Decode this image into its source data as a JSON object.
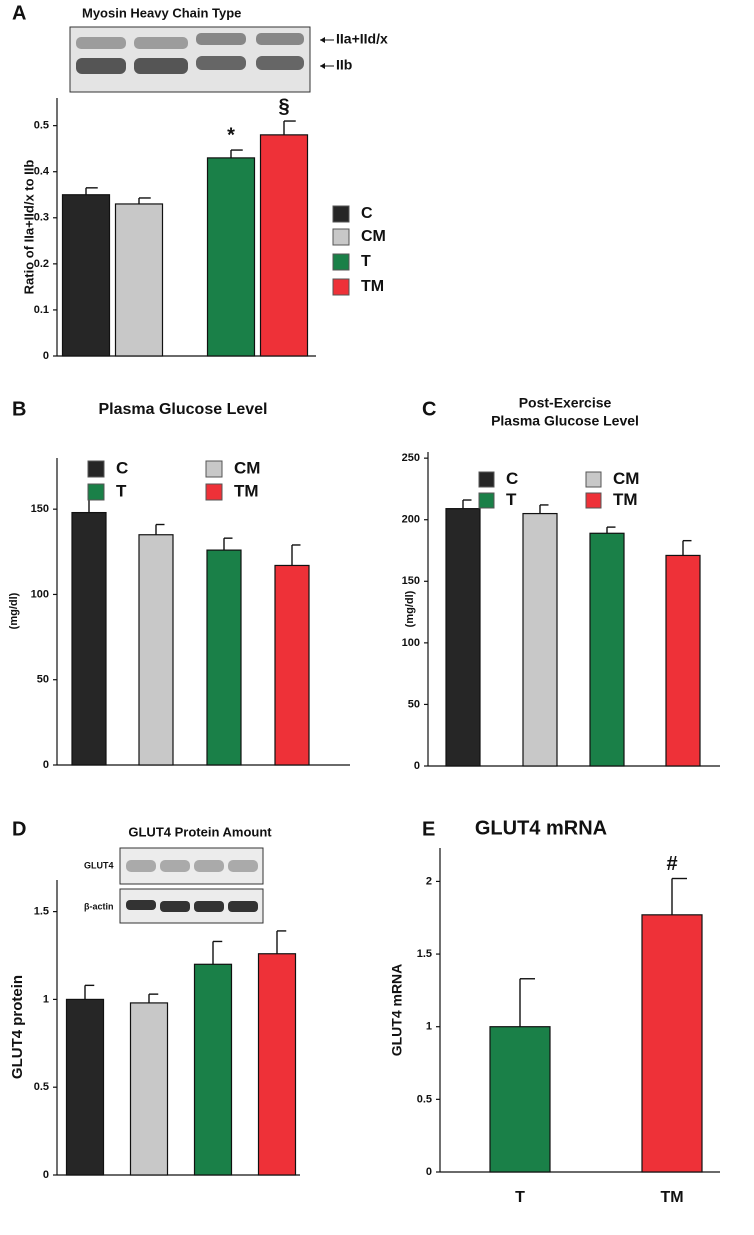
{
  "chart_data": [
    {
      "type": "bar",
      "panel_label": "A",
      "title": "Myosin Heavy Chain Type",
      "blot": {
        "bands": [
          "IIa+IId/x",
          "IIb"
        ]
      },
      "ylabel": "Ratio of IIa+IId/x to IIb",
      "ylim": [
        0,
        0.56
      ],
      "yticks": [
        0,
        0.1,
        0.2,
        0.3,
        0.4,
        0.5
      ],
      "series": [
        {
          "name": "C",
          "color": "#262626",
          "values": [
            0.35
          ],
          "errors": [
            0.015
          ]
        },
        {
          "name": "CM",
          "color": "#c8c8c8",
          "values": [
            0.33
          ],
          "errors": [
            0.013
          ]
        },
        {
          "name": "T",
          "color": "#1a8048",
          "values": [
            0.43
          ],
          "errors": [
            0.017
          ],
          "annotation": "*"
        },
        {
          "name": "TM",
          "color": "#ee3138",
          "values": [
            0.48
          ],
          "errors": [
            0.03
          ],
          "annotation": "§"
        }
      ]
    },
    {
      "type": "bar",
      "panel_label": "B",
      "title": [
        "Plasma Glucose Level"
      ],
      "ylabel": "(mg/dl)",
      "ylim": [
        0,
        180
      ],
      "yticks": [
        0,
        50,
        100,
        150
      ],
      "series": [
        {
          "name": "C",
          "color": "#262626",
          "values": [
            148
          ],
          "errors": [
            12
          ]
        },
        {
          "name": "CM",
          "color": "#c8c8c8",
          "values": [
            135
          ],
          "errors": [
            6
          ]
        },
        {
          "name": "T",
          "color": "#1a8048",
          "values": [
            126
          ],
          "errors": [
            7
          ]
        },
        {
          "name": "TM",
          "color": "#ee3138",
          "values": [
            117
          ],
          "errors": [
            12
          ]
        }
      ]
    },
    {
      "type": "bar",
      "panel_label": "C",
      "title": [
        "Post-Exercise",
        "Plasma Glucose Level"
      ],
      "ylabel": "(mg/dl)",
      "ylim": [
        0,
        255
      ],
      "yticks": [
        0,
        50,
        100,
        150,
        200,
        250
      ],
      "series": [
        {
          "name": "C",
          "color": "#262626",
          "values": [
            209
          ],
          "errors": [
            7
          ]
        },
        {
          "name": "CM",
          "color": "#c8c8c8",
          "values": [
            205
          ],
          "errors": [
            7
          ]
        },
        {
          "name": "T",
          "color": "#1a8048",
          "values": [
            189
          ],
          "errors": [
            5
          ]
        },
        {
          "name": "TM",
          "color": "#ee3138",
          "values": [
            171
          ],
          "errors": [
            12
          ]
        }
      ]
    },
    {
      "type": "bar",
      "panel_label": "D",
      "title": "GLUT4 Protein Amount",
      "blot": {
        "bands": [
          "GLUT4",
          "β-actin"
        ]
      },
      "ylabel": "GLUT4 protein",
      "ylim": [
        0,
        1.68
      ],
      "yticks": [
        0,
        0.5,
        1,
        1.5
      ],
      "series": [
        {
          "color": "#262626",
          "values": [
            1.0
          ],
          "errors": [
            0.08
          ]
        },
        {
          "color": "#c8c8c8",
          "values": [
            0.98
          ],
          "errors": [
            0.05
          ]
        },
        {
          "color": "#1a8048",
          "values": [
            1.2
          ],
          "errors": [
            0.13
          ]
        },
        {
          "color": "#ee3138",
          "values": [
            1.26
          ],
          "errors": [
            0.13
          ]
        }
      ]
    },
    {
      "type": "bar",
      "panel_label": "E",
      "title": "GLUT4 mRNA",
      "ylabel": "GLUT4 mRNA",
      "ylim": [
        0,
        2.23
      ],
      "yticks": [
        0,
        0.5,
        1,
        1.5,
        2
      ],
      "categories": [
        "T",
        "TM"
      ],
      "values": [
        1.0,
        1.77
      ],
      "errors": [
        0.33,
        0.25
      ],
      "colors": [
        "#1a8048",
        "#ee3138"
      ],
      "annotations": [
        null,
        "#"
      ]
    }
  ]
}
